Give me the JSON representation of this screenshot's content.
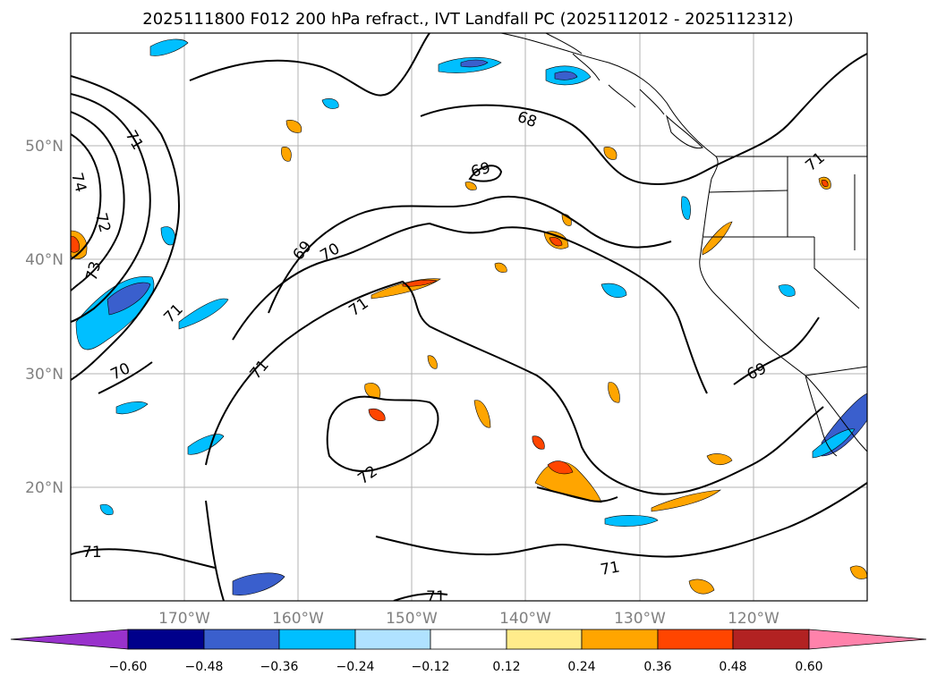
{
  "title": "2025111800 F012 200 hPa refract., IVT Landfall PC (2025112012 - 2025112312)",
  "map": {
    "latitude_labels": [
      "50°N",
      "40°N",
      "30°N",
      "20°N"
    ],
    "longitude_labels": [
      "170°W",
      "160°W",
      "150°W",
      "140°W",
      "130°W",
      "120°W"
    ],
    "contour_labels": [
      "68",
      "69",
      "69",
      "70",
      "71",
      "71",
      "71",
      "71",
      "71",
      "71",
      "71",
      "72",
      "72",
      "73",
      "74",
      "70",
      "69",
      "71"
    ]
  },
  "colorbar": {
    "ticks": [
      "−0.60",
      "−0.48",
      "−0.36",
      "−0.24",
      "−0.12",
      "0.12",
      "0.24",
      "0.36",
      "0.48",
      "0.60"
    ],
    "colors": [
      "#9932cc",
      "#00008b",
      "#3a5fcd",
      "#00bfff",
      "#b0e2ff",
      "#ffffff",
      "#ffec8b",
      "#ffa500",
      "#ff4500",
      "#b22222",
      "#ff82ab"
    ]
  }
}
